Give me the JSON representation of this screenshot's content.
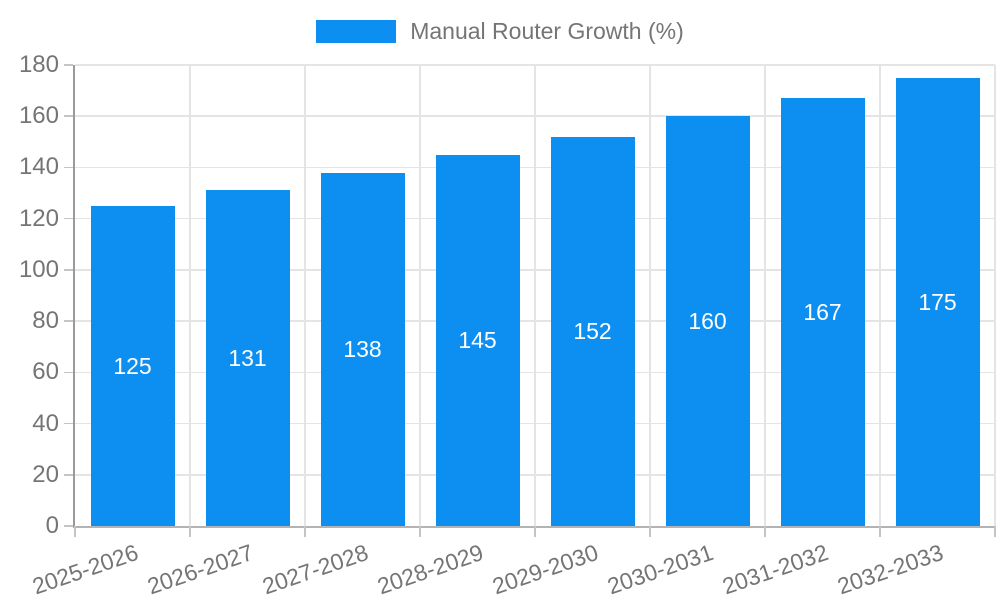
{
  "chart_data": {
    "type": "bar",
    "title": "",
    "legend": {
      "label": "Manual Router Growth (%)",
      "position": "top"
    },
    "categories": [
      "2025-2026",
      "2026-2027",
      "2027-2028",
      "2028-2029",
      "2029-2030",
      "2030-2031",
      "2031-2032",
      "2032-2033"
    ],
    "series": [
      {
        "name": "Manual Router Growth (%)",
        "values": [
          125,
          131,
          138,
          145,
          152,
          160,
          167,
          175
        ]
      }
    ],
    "value_labels_shown": true,
    "xlabel": "",
    "ylabel": "",
    "ylim": [
      0,
      180
    ],
    "yticks": [
      0,
      20,
      40,
      60,
      80,
      100,
      120,
      140,
      160,
      180
    ],
    "grid": true,
    "xtick_rotation_deg": -19,
    "colors": {
      "bar": "#0d8ff2",
      "value_label": "#ffffff",
      "axis_text": "#757575",
      "gridline": "#e4e4e4",
      "axis_line": "#9a9a9a",
      "tick_mark": "#c4c4c4",
      "background": "#ffffff"
    }
  }
}
